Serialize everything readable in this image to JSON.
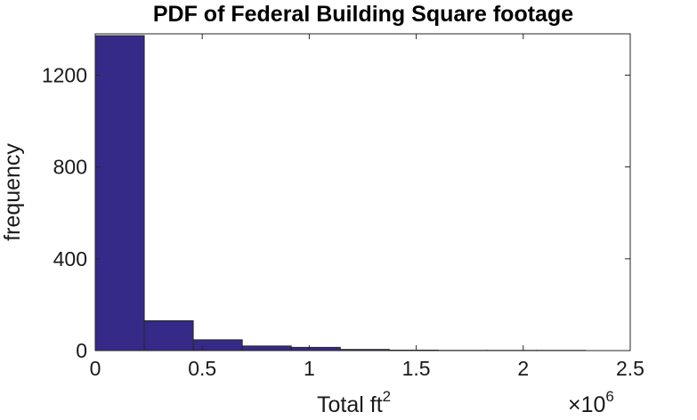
{
  "chart_data": {
    "type": "bar",
    "title": "PDF of Federal Building Square footage",
    "xlabel": "Total ft",
    "xlabel_superscript": "2",
    "ylabel": "frequency",
    "x_scale_multiplier": "×10",
    "x_scale_exponent": "6",
    "xlim": [
      0,
      2.5
    ],
    "ylim": [
      0,
      1380
    ],
    "bin_edges": [
      0,
      0.229,
      0.458,
      0.687,
      0.916,
      1.145,
      1.374,
      1.603,
      1.832,
      2.061,
      2.29
    ],
    "values": [
      1372,
      130,
      47,
      20,
      14,
      5,
      2,
      1,
      1,
      1
    ],
    "xticks": [
      0,
      0.5,
      1,
      1.5,
      2,
      2.5
    ],
    "xtick_labels": [
      "0",
      "0.5",
      "1",
      "1.5",
      "2",
      "2.5"
    ],
    "yticks": [
      0,
      400,
      800,
      1200
    ],
    "ytick_labels": [
      "0",
      "400",
      "800",
      "1200"
    ],
    "bar_color": "#352a87",
    "grid": false
  }
}
